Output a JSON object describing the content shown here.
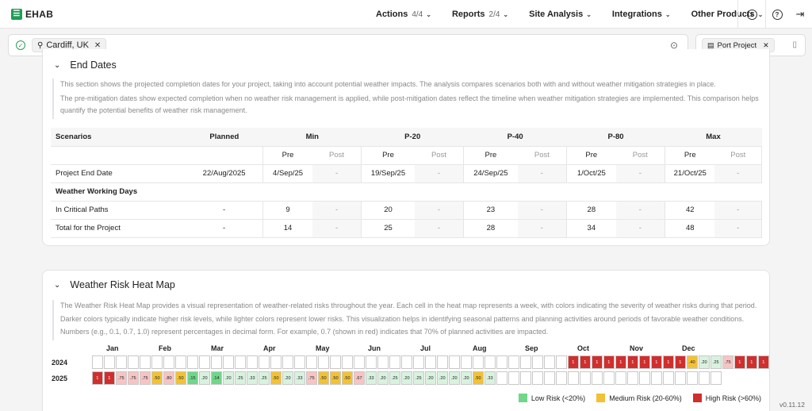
{
  "app": {
    "logo": "EHAB"
  },
  "nav": [
    {
      "label": "Actions",
      "count": "4/4"
    },
    {
      "label": "Reports",
      "count": "2/4"
    },
    {
      "label": "Site Analysis",
      "count": ""
    },
    {
      "label": "Integrations",
      "count": ""
    },
    {
      "label": "Other Products",
      "count": ""
    }
  ],
  "search": {
    "location": "Cardiff, UK",
    "project": "Port Project"
  },
  "end_dates": {
    "title": "End Dates",
    "desc1": "This section shows the projected completion dates for your project, taking into account potential weather impacts. The analysis compares scenarios both with and without weather mitigation strategies in place.",
    "desc2": "The pre-mitigation dates show expected completion when no weather risk management is applied, while post-mitigation dates reflect the timeline when weather mitigation strategies are implemented. This comparison helps quantify the potential benefits of weather risk management.",
    "col_scenarios": "Scenarios",
    "col_planned": "Planned",
    "groups": [
      "Min",
      "P-20",
      "P-40",
      "P-80",
      "Max"
    ],
    "pre": "Pre",
    "post": "Post",
    "rows": [
      {
        "label": "Project End Date",
        "planned": "22/Aug/2025",
        "vals": [
          "4/Sep/25",
          "-",
          "19/Sep/25",
          "-",
          "24/Sep/25",
          "-",
          "1/Oct/25",
          "-",
          "21/Oct/25",
          "-"
        ]
      },
      {
        "label": "Weather Working Days",
        "section": true
      },
      {
        "label": "In Critical Paths",
        "planned": "-",
        "vals": [
          "9",
          "-",
          "20",
          "-",
          "23",
          "-",
          "28",
          "-",
          "42",
          "-"
        ]
      },
      {
        "label": "Total for the Project",
        "planned": "-",
        "vals": [
          "14",
          "-",
          "25",
          "-",
          "28",
          "-",
          "34",
          "-",
          "48",
          "-"
        ]
      }
    ]
  },
  "heatmap": {
    "title": "Weather Risk Heat Map",
    "desc1": "The Weather Risk Heat Map provides a visual representation of weather-related risks throughout the year. Each cell in the heat map represents a week, with colors indicating the severity of weather risks during that period.",
    "desc2": "Darker colors typically indicate higher risk levels, while lighter colors represent lower risks. This visualization helps in identifying seasonal patterns and planning activities around periods of favorable weather conditions.",
    "desc3": "Numbers (e.g., 0.1, 0.7, 1.0) represent percentages in decimal form. For example, 0.7 (shown in red) indicates that 70% of planned activities are impacted.",
    "months": [
      "Jan",
      "Feb",
      "Mar",
      "Apr",
      "May",
      "Jun",
      "Jul",
      "Aug",
      "Sep",
      "Oct",
      "Nov",
      "Dec"
    ],
    "years": [
      {
        "year": "2024",
        "cells": [
          "",
          "",
          "",
          "",
          "",
          "",
          "",
          "",
          "",
          "",
          "",
          "",
          "",
          "",
          "",
          "",
          "",
          "",
          "",
          "",
          "",
          "",
          "",
          "",
          "",
          "",
          "",
          "",
          "",
          "",
          "",
          "",
          "",
          "",
          "",
          "",
          "",
          "",
          "",
          "",
          "1",
          "1",
          "1",
          "1",
          "1",
          "1",
          "1",
          "1",
          "1",
          "1",
          ".40",
          ".20",
          ".25",
          ".75",
          "1",
          "1",
          "1"
        ]
      },
      {
        "year": "2025",
        "cells": [
          "1",
          "1",
          ".75",
          ".75",
          ".75",
          ".50",
          ".80",
          ".50",
          ".15",
          ".20",
          ".14",
          ".20",
          ".25",
          ".33",
          ".25",
          ".50",
          ".20",
          ".33",
          ".75",
          ".50",
          ".50",
          ".50",
          ".67",
          ".33",
          ".20",
          ".25",
          ".20",
          ".25",
          ".20",
          ".20",
          ".20",
          ".20",
          ".50",
          ".33",
          "",
          "",
          "",
          "",
          "",
          "",
          "",
          "",
          "",
          "",
          "",
          "",
          "",
          "",
          "",
          "",
          "",
          "",
          ""
        ]
      }
    ],
    "legend": [
      "Low Risk (<20%)",
      "Medium Risk (20-60%)",
      "High Risk (>60%)"
    ],
    "colors": {
      "low": "#6fd68a",
      "medium": "#f2c236",
      "high": "#d12e2e"
    }
  },
  "version": "v0.11.12"
}
